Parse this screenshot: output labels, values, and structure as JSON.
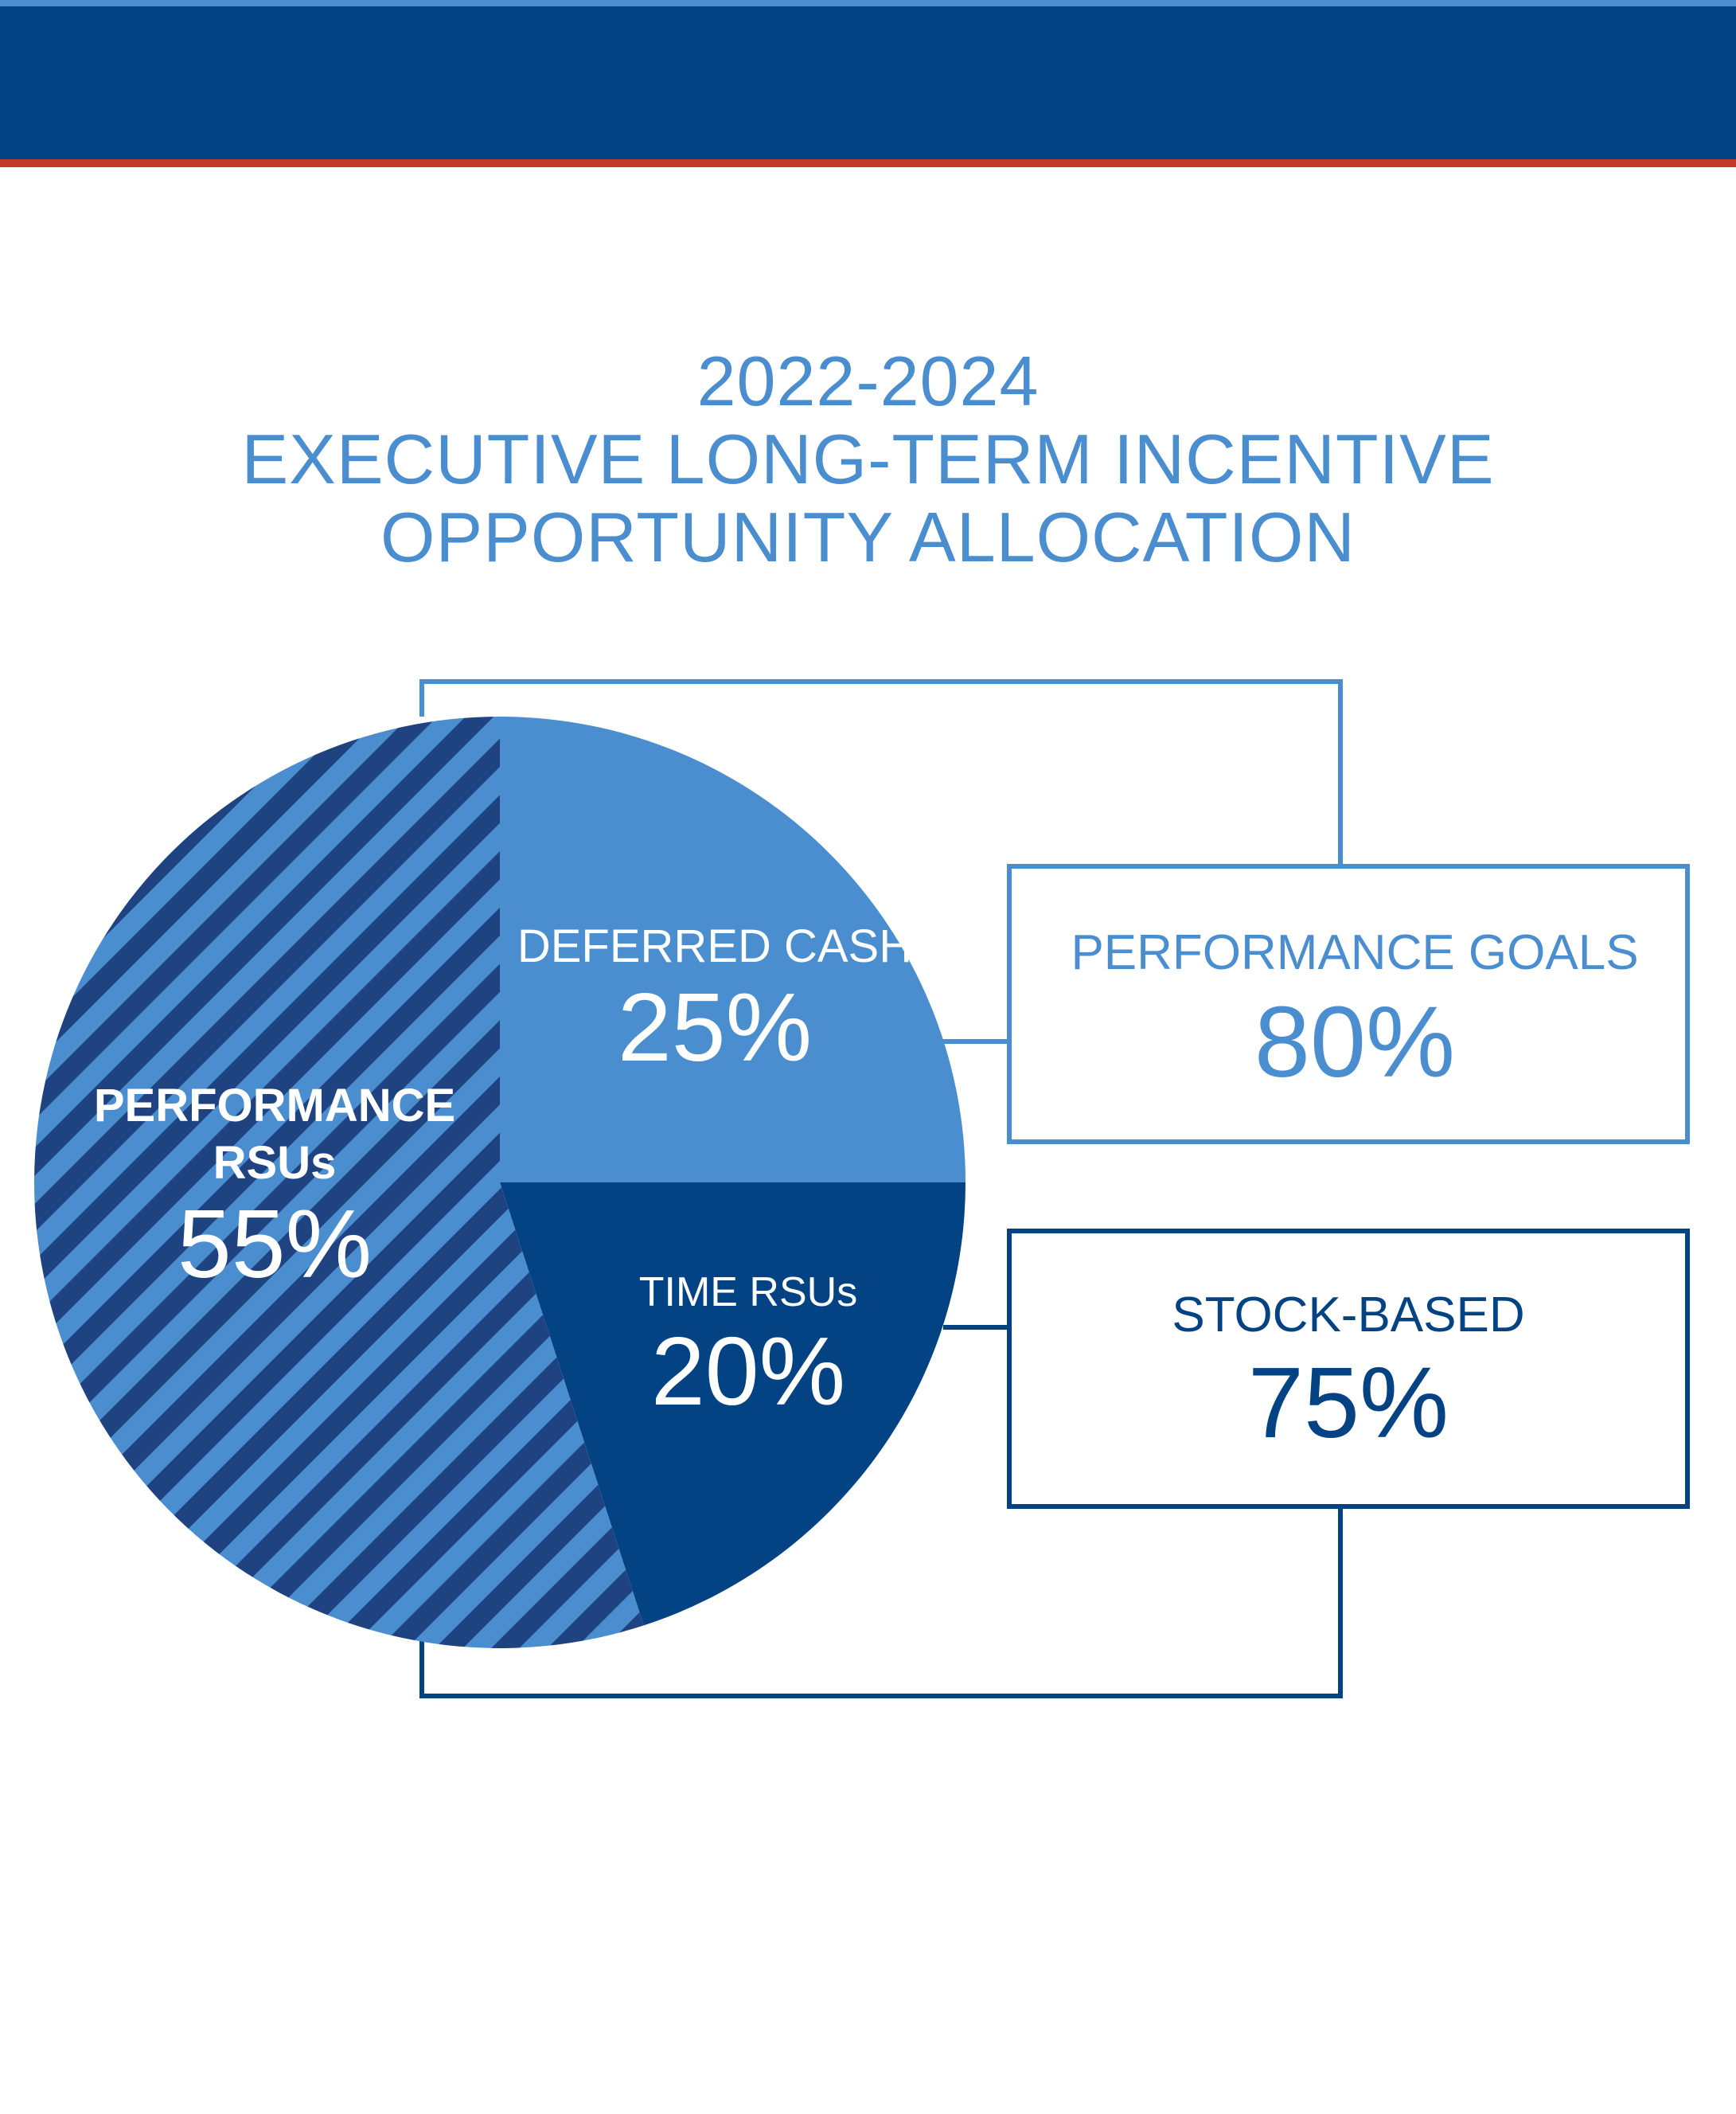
{
  "title": {
    "line1": "2022-2024",
    "line2": "EXECUTIVE LONG-TERM INCENTIVE",
    "line3": "OPPORTUNITY ALLOCATION"
  },
  "colors": {
    "navy": "#034283",
    "light_blue": "#4a8ed0",
    "stripe_dark": "#1f4380",
    "accent_red": "#c2392b",
    "white": "#ffffff"
  },
  "chart_data": {
    "type": "pie",
    "title": "2022-2024 EXECUTIVE LONG-TERM INCENTIVE OPPORTUNITY ALLOCATION",
    "slices": [
      {
        "label_lines": [
          "DEFERRED CASH"
        ],
        "value": 25,
        "value_label": "25%",
        "style": "solid-light"
      },
      {
        "label_lines": [
          "TIME RSUs"
        ],
        "value": 20,
        "value_label": "20%",
        "style": "solid-navy"
      },
      {
        "label_lines": [
          "PERFORMANCE",
          "RSUs"
        ],
        "value": 55,
        "value_label": "55%",
        "style": "striped"
      }
    ],
    "groupings": [
      {
        "label": "PERFORMANCE GOALS",
        "value": 80,
        "value_label": "80%",
        "includes": [
          "DEFERRED CASH",
          "PERFORMANCE RSUs"
        ]
      },
      {
        "label": "STOCK-BASED",
        "value": 75,
        "value_label": "75%",
        "includes": [
          "TIME RSUs",
          "PERFORMANCE RSUs"
        ]
      }
    ]
  }
}
